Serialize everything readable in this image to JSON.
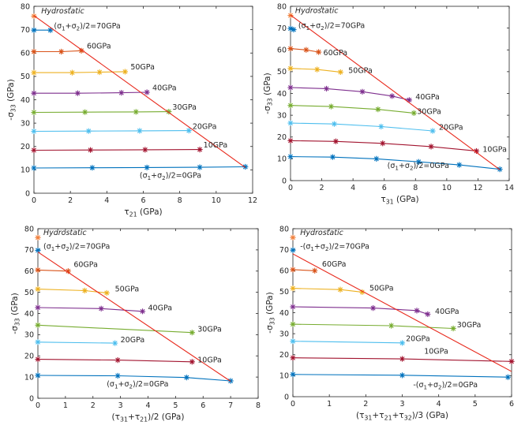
{
  "chart_data": [
    {
      "type": "line",
      "xlabel": "τ21 (GPa)",
      "ylabel": "-σ33 (GPa)",
      "xlim": [
        0,
        12
      ],
      "ylim": [
        0,
        80
      ],
      "xticks": [
        "0",
        "2",
        "4",
        "6",
        "8",
        "10",
        "12"
      ],
      "yticks": [
        "0",
        "10",
        "20",
        "30",
        "40",
        "50",
        "60",
        "70",
        "80"
      ],
      "series": [
        {
          "name": "Hydrostatic",
          "color": "#f07f3b",
          "points": [
            [
              0,
              75.8
            ]
          ]
        },
        {
          "name": "(σ1+σ2)/2=70GPa",
          "color": "#0072bd",
          "points": [
            [
              0,
              69.8
            ],
            [
              0.9,
              69.8
            ]
          ]
        },
        {
          "name": "60GPa",
          "color": "#d95319",
          "points": [
            [
              0,
              60.6
            ],
            [
              1.5,
              60.6
            ],
            [
              2.6,
              61.0
            ]
          ]
        },
        {
          "name": "50GPa",
          "color": "#edb120",
          "points": [
            [
              0,
              51.6
            ],
            [
              2.1,
              51.6
            ],
            [
              3.6,
              51.8
            ],
            [
              5.0,
              52.0
            ]
          ]
        },
        {
          "name": "40GPa",
          "color": "#7e2f8e",
          "points": [
            [
              0,
              42.8
            ],
            [
              2.4,
              42.8
            ],
            [
              4.8,
              43.0
            ],
            [
              6.2,
              43.2
            ]
          ]
        },
        {
          "name": "30GPa",
          "color": "#77ac30",
          "points": [
            [
              0,
              34.6
            ],
            [
              2.8,
              34.7
            ],
            [
              5.6,
              34.8
            ],
            [
              7.4,
              34.9
            ]
          ]
        },
        {
          "name": "20GPa",
          "color": "#4dbeee",
          "points": [
            [
              0,
              26.5
            ],
            [
              3.0,
              26.6
            ],
            [
              5.8,
              26.7
            ],
            [
              8.5,
              26.8
            ]
          ]
        },
        {
          "name": "10GPa",
          "color": "#a2142f",
          "points": [
            [
              0,
              18.4
            ],
            [
              3.1,
              18.5
            ],
            [
              6.1,
              18.6
            ],
            [
              9.1,
              18.7
            ]
          ]
        },
        {
          "name": "(σ1+σ2)/2=0GPa",
          "color": "#0072bd",
          "points": [
            [
              0,
              10.8
            ],
            [
              3.2,
              10.9
            ],
            [
              6.2,
              11.0
            ],
            [
              9.1,
              11.1
            ],
            [
              11.6,
              11.3
            ]
          ]
        }
      ],
      "envelope": {
        "color": "#e8291c",
        "points": [
          [
            0,
            76
          ],
          [
            11.6,
            11
          ]
        ]
      },
      "annotations": [
        {
          "text": "Hydrostatic",
          "x": 0.4,
          "y": 77
        },
        {
          "text": "(σ1+σ2)/2=70GPa",
          "x": 1.1,
          "y": 70.5
        },
        {
          "text": "60GPa",
          "x": 2.9,
          "y": 62
        },
        {
          "text": "50GPa",
          "x": 5.3,
          "y": 53
        },
        {
          "text": "40GPa",
          "x": 6.5,
          "y": 44
        },
        {
          "text": "30GPa",
          "x": 7.6,
          "y": 35.8
        },
        {
          "text": "20GPa",
          "x": 8.7,
          "y": 27.5
        },
        {
          "text": "10GPa",
          "x": 9.3,
          "y": 19.5
        },
        {
          "text": "(σ1+σ2)/2=0GPa",
          "x": 5.8,
          "y": 6.5
        }
      ]
    },
    {
      "type": "line",
      "xlabel": "τ31 (GPa)",
      "ylabel": "-σ33 (GPa)",
      "xlim": [
        0,
        14
      ],
      "ylim": [
        0,
        80
      ],
      "xticks": [
        "0",
        "2",
        "4",
        "6",
        "8",
        "10",
        "12",
        "14"
      ],
      "yticks": [
        "0",
        "10",
        "20",
        "30",
        "40",
        "50",
        "60",
        "70",
        "80"
      ],
      "series": [
        {
          "name": "Hydrostatic",
          "color": "#f07f3b",
          "points": [
            [
              0,
              75.8
            ]
          ]
        },
        {
          "name": "(σ1+σ2)/2=70GPa",
          "color": "#0072bd",
          "points": [
            [
              0,
              69.8
            ],
            [
              0.2,
              69.3
            ]
          ]
        },
        {
          "name": "60GPa",
          "color": "#d95319",
          "points": [
            [
              0,
              60.6
            ],
            [
              1.0,
              60.0
            ],
            [
              1.8,
              59.0
            ]
          ]
        },
        {
          "name": "50GPa",
          "color": "#edb120",
          "points": [
            [
              0,
              51.5
            ],
            [
              1.7,
              51.0
            ],
            [
              3.2,
              49.8
            ]
          ]
        },
        {
          "name": "40GPa",
          "color": "#7e2f8e",
          "points": [
            [
              0,
              42.7
            ],
            [
              2.3,
              42.2
            ],
            [
              4.6,
              40.8
            ],
            [
              6.5,
              38.8
            ],
            [
              7.6,
              37.0
            ]
          ]
        },
        {
          "name": "30GPa",
          "color": "#77ac30",
          "points": [
            [
              0,
              34.5
            ],
            [
              2.6,
              34.0
            ],
            [
              5.6,
              32.7
            ],
            [
              7.9,
              31.0
            ]
          ]
        },
        {
          "name": "20GPa",
          "color": "#4dbeee",
          "points": [
            [
              0,
              26.4
            ],
            [
              2.8,
              26.0
            ],
            [
              5.8,
              24.8
            ],
            [
              9.1,
              22.8
            ]
          ]
        },
        {
          "name": "10GPa",
          "color": "#a2142f",
          "points": [
            [
              0,
              18.3
            ],
            [
              2.9,
              18.0
            ],
            [
              5.9,
              17.1
            ],
            [
              9.0,
              15.6
            ],
            [
              11.9,
              13.6
            ]
          ]
        },
        {
          "name": "(σ1+σ2)/2=0GPa",
          "color": "#0072bd",
          "points": [
            [
              0,
              11.0
            ],
            [
              2.7,
              10.8
            ],
            [
              5.5,
              10.0
            ],
            [
              8.2,
              8.6
            ],
            [
              10.8,
              7.2
            ],
            [
              13.4,
              5.2
            ]
          ]
        }
      ],
      "envelope": {
        "color": "#e8291c",
        "points": [
          [
            0,
            76
          ],
          [
            13.4,
            5
          ]
        ]
      },
      "annotations": [
        {
          "text": "Hydrostatic",
          "x": 0.3,
          "y": 77
        },
        {
          "text": "(σ1+σ2)/2=70GPa",
          "x": 0.5,
          "y": 70
        },
        {
          "text": "60GPa",
          "x": 2.1,
          "y": 57.5
        },
        {
          "text": "50GPa",
          "x": 3.7,
          "y": 49.5
        },
        {
          "text": "40GPa",
          "x": 8.0,
          "y": 37.2
        },
        {
          "text": "30GPa",
          "x": 8.1,
          "y": 30.5
        },
        {
          "text": "20GPa",
          "x": 9.5,
          "y": 23.4
        },
        {
          "text": "10GPa",
          "x": 12.3,
          "y": 13.2
        },
        {
          "text": "(σ1+σ2)/2=0GPa",
          "x": 6.2,
          "y": 5.8
        }
      ]
    },
    {
      "type": "line",
      "xlabel": "(τ31+τ21)/2 (GPa)",
      "ylabel": "-σ33 (GPa)",
      "xlim": [
        0,
        8
      ],
      "ylim": [
        0,
        80
      ],
      "xticks": [
        "0",
        "1",
        "2",
        "3",
        "4",
        "5",
        "6",
        "7",
        "8"
      ],
      "yticks": [
        "0",
        "10",
        "20",
        "30",
        "40",
        "50",
        "60",
        "70",
        "80"
      ],
      "series": [
        {
          "name": "Hydrostatic",
          "color": "#f07f3b",
          "points": [
            [
              0,
              75.8
            ]
          ]
        },
        {
          "name": "(σ1+σ2)/2=70GPa",
          "color": "#0072bd",
          "points": [
            [
              0,
              69.8
            ]
          ]
        },
        {
          "name": "60GPa",
          "color": "#d95319",
          "points": [
            [
              0,
              60.5
            ],
            [
              1.1,
              60.0
            ]
          ]
        },
        {
          "name": "50GPa",
          "color": "#edb120",
          "points": [
            [
              0,
              51.5
            ],
            [
              1.7,
              50.8
            ],
            [
              2.5,
              49.7
            ]
          ]
        },
        {
          "name": "40GPa",
          "color": "#7e2f8e",
          "points": [
            [
              0,
              42.8
            ],
            [
              2.3,
              42.3
            ],
            [
              3.8,
              41.0
            ]
          ]
        },
        {
          "name": "30GPa",
          "color": "#77ac30",
          "points": [
            [
              0,
              34.5
            ],
            [
              5.6,
              31.0
            ]
          ]
        },
        {
          "name": "20GPa",
          "color": "#4dbeee",
          "points": [
            [
              0,
              26.5
            ],
            [
              2.8,
              26.0
            ]
          ]
        },
        {
          "name": "10GPa",
          "color": "#a2142f",
          "points": [
            [
              0,
              18.4
            ],
            [
              2.9,
              18.0
            ],
            [
              5.6,
              17.2
            ]
          ]
        },
        {
          "name": "(σ1+σ2)/2=0GPa",
          "color": "#0072bd",
          "points": [
            [
              0,
              10.8
            ],
            [
              2.9,
              10.6
            ],
            [
              5.4,
              9.8
            ],
            [
              7.0,
              8.2
            ]
          ]
        }
      ],
      "envelope": {
        "color": "#e8291c",
        "points": [
          [
            0,
            69
          ],
          [
            7.0,
            8
          ]
        ]
      },
      "annotations": [
        {
          "text": "Hydrostatic",
          "x": 0.2,
          "y": 77
        },
        {
          "text": "(σ1+σ2)/2=70GPa",
          "x": 0.2,
          "y": 70.5
        },
        {
          "text": "60GPa",
          "x": 1.3,
          "y": 62
        },
        {
          "text": "50GPa",
          "x": 2.8,
          "y": 50.5
        },
        {
          "text": "40GPa",
          "x": 4.0,
          "y": 41.5
        },
        {
          "text": "30GPa",
          "x": 5.8,
          "y": 31.5
        },
        {
          "text": "20GPa",
          "x": 3.0,
          "y": 26.5
        },
        {
          "text": "10GPa",
          "x": 5.8,
          "y": 17
        },
        {
          "text": "(σ1+σ2)/2=0GPa",
          "x": 2.5,
          "y": 5.5
        }
      ]
    },
    {
      "type": "line",
      "xlabel": "(τ31+τ21+τ32)/3 (GPa)",
      "ylabel": "-σ33 (GPa)",
      "xlim": [
        0,
        6
      ],
      "ylim": [
        0,
        80
      ],
      "xticks": [
        "0",
        "1",
        "2",
        "3",
        "4",
        "5",
        "6"
      ],
      "yticks": [
        "0",
        "10",
        "20",
        "30",
        "40",
        "50",
        "60",
        "70",
        "80"
      ],
      "series": [
        {
          "name": "Hydrostatic",
          "color": "#f07f3b",
          "points": [
            [
              0,
              75.8
            ]
          ]
        },
        {
          "name": "(σ1+σ2)/2=70GPa",
          "color": "#0072bd",
          "points": [
            [
              0,
              69.8
            ]
          ]
        },
        {
          "name": "60GPa",
          "color": "#d95319",
          "points": [
            [
              0,
              60.5
            ],
            [
              0.6,
              60.0
            ]
          ]
        },
        {
          "name": "50GPa",
          "color": "#edb120",
          "points": [
            [
              0,
              51.6
            ],
            [
              1.3,
              51.0
            ],
            [
              1.9,
              49.8
            ]
          ]
        },
        {
          "name": "40GPa",
          "color": "#7e2f8e",
          "points": [
            [
              0,
              42.8
            ],
            [
              2.2,
              42.2
            ],
            [
              3.4,
              41.0
            ],
            [
              3.7,
              39.3
            ]
          ]
        },
        {
          "name": "30GPa",
          "color": "#77ac30",
          "points": [
            [
              0,
              34.5
            ],
            [
              2.7,
              33.8
            ],
            [
              4.4,
              32.5
            ]
          ]
        },
        {
          "name": "20GPa",
          "color": "#4dbeee",
          "points": [
            [
              0,
              26.4
            ],
            [
              3.0,
              25.6
            ]
          ]
        },
        {
          "name": "10GPa",
          "color": "#a2142f",
          "points": [
            [
              0,
              18.5
            ],
            [
              3.0,
              18.0
            ],
            [
              6.0,
              16.8
            ]
          ]
        },
        {
          "name": "(σ1+σ2)/2=0GPa",
          "color": "#0072bd",
          "points": [
            [
              0,
              10.6
            ],
            [
              3.0,
              10.2
            ],
            [
              5.9,
              9.3
            ]
          ]
        }
      ],
      "envelope": {
        "color": "#e8291c",
        "points": [
          [
            0,
            68
          ],
          [
            6.0,
            12
          ]
        ]
      },
      "annotations": [
        {
          "text": "Hydrostatic",
          "x": 0.2,
          "y": 77
        },
        {
          "text": "-(σ1+σ2)/2=70GPa",
          "x": 0.2,
          "y": 70.5
        },
        {
          "text": "60GPa",
          "x": 0.8,
          "y": 62
        },
        {
          "text": "50GPa",
          "x": 2.1,
          "y": 50.5
        },
        {
          "text": "40GPa",
          "x": 3.9,
          "y": 39.5
        },
        {
          "text": "30GPa",
          "x": 4.5,
          "y": 33
        },
        {
          "text": "20GPa",
          "x": 3.1,
          "y": 26.5
        },
        {
          "text": "10GPa",
          "x": 3.6,
          "y": 20.5
        },
        {
          "text": "-(σ1+σ2)/2=0GPa",
          "x": 3.3,
          "y": 4.5
        }
      ]
    }
  ]
}
